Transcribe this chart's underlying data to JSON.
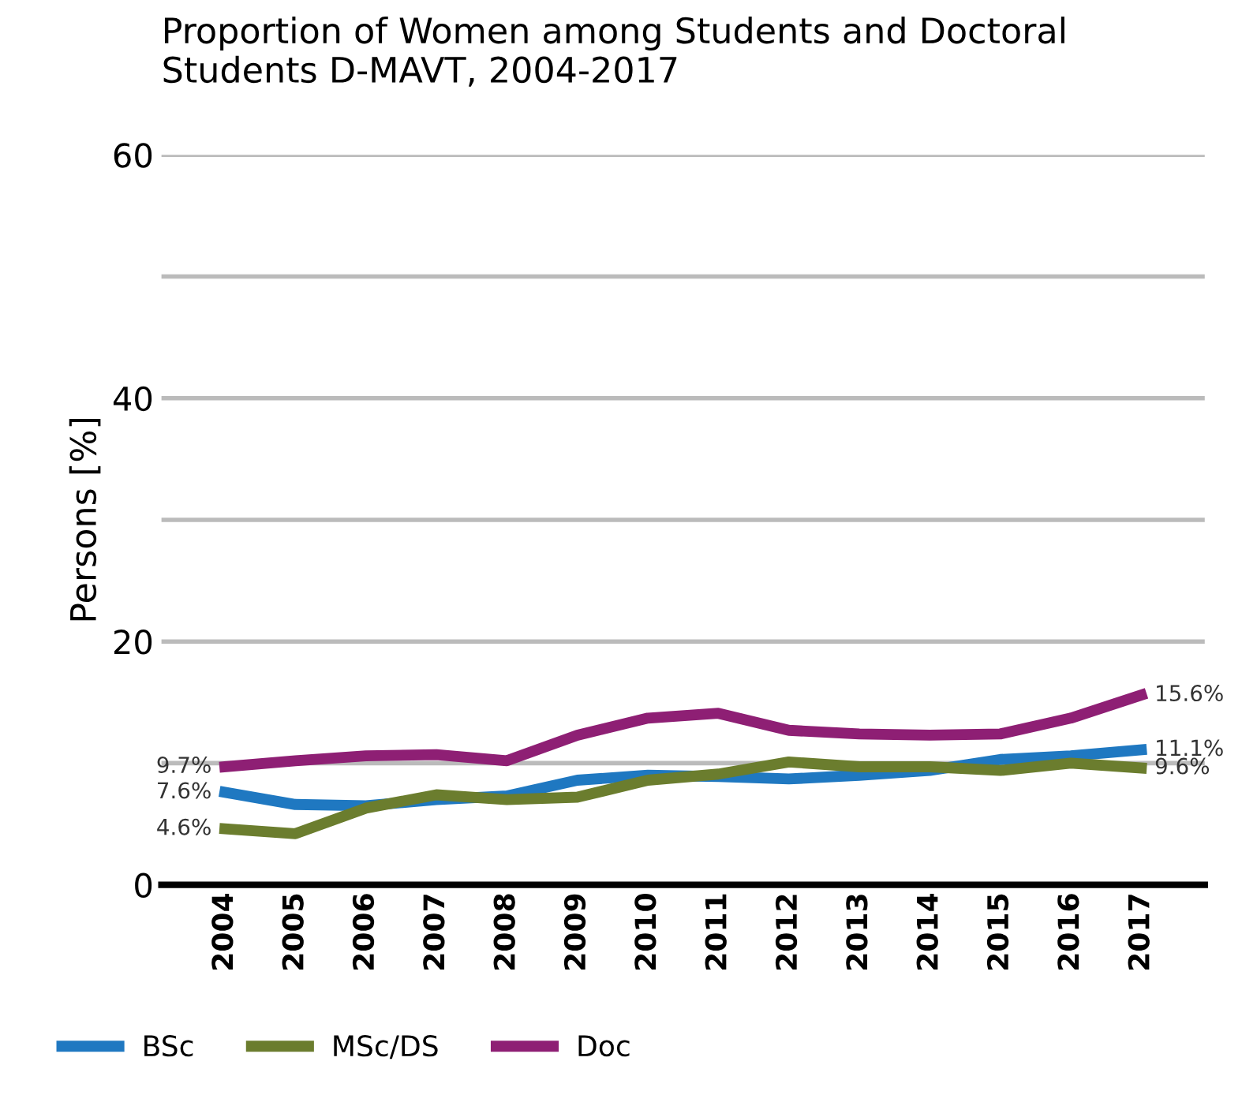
{
  "chart_data": {
    "type": "line",
    "title": "Proportion of Women among Students and Doctoral\nStudents D-MAVT, 2004-2017",
    "ylabel": "Persons [%]",
    "categories": [
      "2004",
      "2005",
      "2006",
      "2007",
      "2008",
      "2009",
      "2010",
      "2011",
      "2012",
      "2013",
      "2014",
      "2015",
      "2016",
      "2017"
    ],
    "series": [
      {
        "name": "BSc",
        "color": "#1f78c1",
        "values": [
          7.6,
          6.6,
          6.5,
          7.0,
          7.3,
          8.6,
          9.0,
          8.9,
          8.7,
          9.0,
          9.4,
          10.3,
          10.6,
          11.1
        ],
        "value_labels": [
          "7.6%",
          null,
          null,
          null,
          null,
          null,
          null,
          null,
          null,
          null,
          null,
          null,
          null,
          "11.1%"
        ]
      },
      {
        "name": "MSc/DS",
        "color": "#6b7d2e",
        "values": [
          4.6,
          4.2,
          6.3,
          7.4,
          7.0,
          7.2,
          8.6,
          9.1,
          10.1,
          9.7,
          9.7,
          9.4,
          10.0,
          9.6
        ],
        "value_labels": [
          "4.6%",
          null,
          null,
          null,
          null,
          null,
          null,
          null,
          null,
          null,
          null,
          null,
          null,
          "9.6%"
        ]
      },
      {
        "name": "Doc",
        "color": "#8e1f74",
        "values": [
          9.7,
          10.2,
          10.6,
          10.7,
          10.2,
          12.3,
          13.7,
          14.1,
          12.7,
          12.4,
          12.3,
          12.4,
          13.7,
          15.6
        ],
        "value_labels": [
          "9.7%",
          null,
          null,
          null,
          null,
          null,
          null,
          null,
          null,
          null,
          null,
          null,
          null,
          "15.6%"
        ]
      }
    ],
    "ylim": [
      0,
      60
    ],
    "yticks": [
      0,
      {
        "value": 10,
        "label": null
      },
      20,
      {
        "value": 30,
        "label": null
      },
      40,
      {
        "value": 50,
        "label": null
      },
      60
    ],
    "grid": "y",
    "legend": "bottom left",
    "line_style": "solid",
    "marker": "none"
  }
}
